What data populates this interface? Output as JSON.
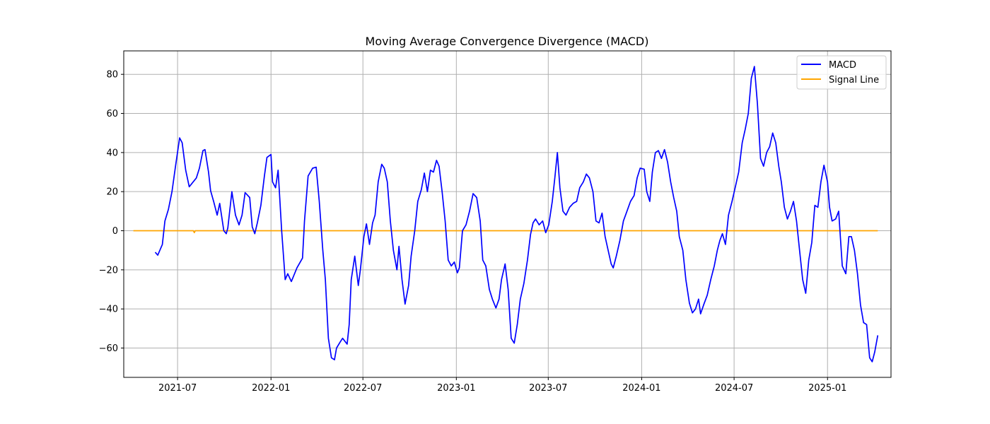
{
  "chart_data": {
    "type": "line",
    "title": "Moving Average Convergence Divergence (MACD)",
    "xlabel": "",
    "ylabel": "",
    "x_axis": "date",
    "xlim": [
      "2021-03-17",
      "2025-05-06"
    ],
    "ylim": [
      -75,
      92
    ],
    "x_ticks": [
      "2021-07",
      "2022-01",
      "2022-07",
      "2023-01",
      "2023-07",
      "2024-01",
      "2024-07",
      "2025-01"
    ],
    "y_ticks": [
      -60,
      -40,
      -20,
      0,
      20,
      40,
      60,
      80
    ],
    "grid": true,
    "legend": {
      "placement": "top-right"
    },
    "series": [
      {
        "name": "MACD",
        "color": "#0000ff",
        "points": [
          [
            "2021-05-18",
            -11
          ],
          [
            "2021-05-23",
            -12.5
          ],
          [
            "2021-06-01",
            -7
          ],
          [
            "2021-06-06",
            5
          ],
          [
            "2021-06-13",
            11
          ],
          [
            "2021-06-20",
            20
          ],
          [
            "2021-06-27",
            33
          ],
          [
            "2021-07-05",
            47.5
          ],
          [
            "2021-07-10",
            45
          ],
          [
            "2021-07-17",
            31
          ],
          [
            "2021-07-24",
            22.5
          ],
          [
            "2021-08-07",
            27
          ],
          [
            "2021-08-13",
            32
          ],
          [
            "2021-08-20",
            41
          ],
          [
            "2021-08-24",
            41.5
          ],
          [
            "2021-08-31",
            30
          ],
          [
            "2021-09-04",
            20.5
          ],
          [
            "2021-09-10",
            15
          ],
          [
            "2021-09-17",
            8
          ],
          [
            "2021-09-22",
            14
          ],
          [
            "2021-09-30",
            0
          ],
          [
            "2021-10-05",
            -1.5
          ],
          [
            "2021-10-08",
            1.5
          ],
          [
            "2021-10-16",
            20
          ],
          [
            "2021-10-23",
            8
          ],
          [
            "2021-10-30",
            3
          ],
          [
            "2021-11-05",
            8
          ],
          [
            "2021-11-11",
            19.5
          ],
          [
            "2021-11-20",
            17
          ],
          [
            "2021-11-25",
            2
          ],
          [
            "2021-11-30",
            -1.5
          ],
          [
            "2021-12-05",
            4
          ],
          [
            "2021-12-12",
            13
          ],
          [
            "2021-12-19",
            28
          ],
          [
            "2021-12-24",
            37.5
          ],
          [
            "2022-01-01",
            39
          ],
          [
            "2022-01-04",
            25
          ],
          [
            "2022-01-10",
            22
          ],
          [
            "2022-01-15",
            31
          ],
          [
            "2022-01-22",
            0
          ],
          [
            "2022-01-29",
            -25
          ],
          [
            "2022-02-03",
            -22
          ],
          [
            "2022-02-10",
            -26
          ],
          [
            "2022-02-21",
            -19
          ],
          [
            "2022-03-04",
            -14
          ],
          [
            "2022-03-08",
            5
          ],
          [
            "2022-03-15",
            28
          ],
          [
            "2022-03-24",
            32
          ],
          [
            "2022-03-31",
            32.5
          ],
          [
            "2022-04-06",
            15
          ],
          [
            "2022-04-13",
            -10
          ],
          [
            "2022-04-18",
            -25
          ],
          [
            "2022-04-24",
            -55
          ],
          [
            "2022-04-30",
            -65
          ],
          [
            "2022-05-06",
            -66
          ],
          [
            "2022-05-10",
            -60
          ],
          [
            "2022-05-17",
            -57
          ],
          [
            "2022-05-22",
            -55
          ],
          [
            "2022-05-31",
            -58
          ],
          [
            "2022-06-04",
            -48
          ],
          [
            "2022-06-08",
            -25
          ],
          [
            "2022-06-15",
            -13
          ],
          [
            "2022-06-22",
            -28
          ],
          [
            "2022-06-26",
            -20
          ],
          [
            "2022-07-03",
            -3
          ],
          [
            "2022-07-08",
            3.5
          ],
          [
            "2022-07-14",
            -7
          ],
          [
            "2022-07-20",
            4
          ],
          [
            "2022-07-25",
            8
          ],
          [
            "2022-07-31",
            25
          ],
          [
            "2022-08-07",
            34
          ],
          [
            "2022-08-12",
            32
          ],
          [
            "2022-08-18",
            25
          ],
          [
            "2022-08-24",
            5
          ],
          [
            "2022-08-30",
            -10
          ],
          [
            "2022-09-06",
            -20
          ],
          [
            "2022-09-10",
            -8
          ],
          [
            "2022-09-16",
            -25
          ],
          [
            "2022-09-22",
            -37.5
          ],
          [
            "2022-09-29",
            -28
          ],
          [
            "2022-10-04",
            -13
          ],
          [
            "2022-10-11",
            0
          ],
          [
            "2022-10-17",
            15
          ],
          [
            "2022-10-24",
            21
          ],
          [
            "2022-10-30",
            29.5
          ],
          [
            "2022-11-05",
            20
          ],
          [
            "2022-11-11",
            31
          ],
          [
            "2022-11-17",
            30
          ],
          [
            "2022-11-23",
            36
          ],
          [
            "2022-11-28",
            33
          ],
          [
            "2022-12-04",
            20
          ],
          [
            "2022-12-10",
            5
          ],
          [
            "2022-12-16",
            -15
          ],
          [
            "2022-12-22",
            -18
          ],
          [
            "2022-12-28",
            -16
          ],
          [
            "2023-01-03",
            -21.5
          ],
          [
            "2023-01-07",
            -19
          ],
          [
            "2023-01-13",
            0
          ],
          [
            "2023-01-20",
            3
          ],
          [
            "2023-01-27",
            10
          ],
          [
            "2023-02-03",
            19
          ],
          [
            "2023-02-10",
            17
          ],
          [
            "2023-02-17",
            5
          ],
          [
            "2023-02-22",
            -15
          ],
          [
            "2023-02-28",
            -18
          ],
          [
            "2023-03-07",
            -30
          ],
          [
            "2023-03-13",
            -35
          ],
          [
            "2023-03-20",
            -39.5
          ],
          [
            "2023-03-26",
            -35
          ],
          [
            "2023-03-31",
            -25
          ],
          [
            "2023-04-07",
            -17
          ],
          [
            "2023-04-13",
            -30
          ],
          [
            "2023-04-19",
            -55
          ],
          [
            "2023-04-25",
            -57.5
          ],
          [
            "2023-05-01",
            -48
          ],
          [
            "2023-05-07",
            -35
          ],
          [
            "2023-05-14",
            -27
          ],
          [
            "2023-05-21",
            -15
          ],
          [
            "2023-05-27",
            -2
          ],
          [
            "2023-06-01",
            4
          ],
          [
            "2023-06-06",
            6
          ],
          [
            "2023-06-13",
            3
          ],
          [
            "2023-06-20",
            5
          ],
          [
            "2023-06-26",
            -1
          ],
          [
            "2023-07-02",
            3
          ],
          [
            "2023-07-09",
            15
          ],
          [
            "2023-07-14",
            27
          ],
          [
            "2023-07-19",
            40
          ],
          [
            "2023-07-24",
            22
          ],
          [
            "2023-07-30",
            10
          ],
          [
            "2023-08-05",
            8
          ],
          [
            "2023-08-12",
            12
          ],
          [
            "2023-08-19",
            14
          ],
          [
            "2023-08-26",
            15
          ],
          [
            "2023-09-01",
            22
          ],
          [
            "2023-09-08",
            25
          ],
          [
            "2023-09-14",
            29
          ],
          [
            "2023-09-20",
            27
          ],
          [
            "2023-09-27",
            20
          ],
          [
            "2023-10-03",
            5
          ],
          [
            "2023-10-09",
            4
          ],
          [
            "2023-10-15",
            9
          ],
          [
            "2023-10-21",
            -3
          ],
          [
            "2023-10-27",
            -10
          ],
          [
            "2023-11-02",
            -17
          ],
          [
            "2023-11-06",
            -19
          ],
          [
            "2023-11-12",
            -13
          ],
          [
            "2023-11-19",
            -5
          ],
          [
            "2023-11-26",
            5
          ],
          [
            "2023-12-03",
            10
          ],
          [
            "2023-12-10",
            15
          ],
          [
            "2023-12-17",
            18
          ],
          [
            "2023-12-23",
            27
          ],
          [
            "2023-12-29",
            32
          ],
          [
            "2024-01-06",
            31.5
          ],
          [
            "2024-01-11",
            20
          ],
          [
            "2024-01-17",
            15
          ],
          [
            "2024-01-22",
            30
          ],
          [
            "2024-01-28",
            40
          ],
          [
            "2024-02-03",
            41
          ],
          [
            "2024-02-09",
            37
          ],
          [
            "2024-02-15",
            41.5
          ],
          [
            "2024-02-21",
            35
          ],
          [
            "2024-02-27",
            25
          ],
          [
            "2024-03-04",
            17
          ],
          [
            "2024-03-10",
            10
          ],
          [
            "2024-03-15",
            -3
          ],
          [
            "2024-03-22",
            -10
          ],
          [
            "2024-03-28",
            -25
          ],
          [
            "2024-04-04",
            -37
          ],
          [
            "2024-04-10",
            -42
          ],
          [
            "2024-04-16",
            -40
          ],
          [
            "2024-04-22",
            -35
          ],
          [
            "2024-04-26",
            -42.5
          ],
          [
            "2024-05-02",
            -38
          ],
          [
            "2024-05-09",
            -33
          ],
          [
            "2024-05-16",
            -25
          ],
          [
            "2024-05-23",
            -18
          ],
          [
            "2024-05-29",
            -10
          ],
          [
            "2024-06-03",
            -5
          ],
          [
            "2024-06-08",
            -1.5
          ],
          [
            "2024-06-14",
            -7
          ],
          [
            "2024-06-20",
            8
          ],
          [
            "2024-06-27",
            15
          ],
          [
            "2024-07-03",
            22
          ],
          [
            "2024-07-10",
            30
          ],
          [
            "2024-07-17",
            45
          ],
          [
            "2024-07-23",
            52
          ],
          [
            "2024-07-29",
            60
          ],
          [
            "2024-08-04",
            78
          ],
          [
            "2024-08-10",
            84
          ],
          [
            "2024-08-16",
            65
          ],
          [
            "2024-08-22",
            37
          ],
          [
            "2024-08-28",
            33
          ],
          [
            "2024-09-03",
            40
          ],
          [
            "2024-09-09",
            43
          ],
          [
            "2024-09-15",
            50
          ],
          [
            "2024-09-21",
            45
          ],
          [
            "2024-09-27",
            33
          ],
          [
            "2024-10-02",
            25
          ],
          [
            "2024-10-08",
            12
          ],
          [
            "2024-10-14",
            6
          ],
          [
            "2024-10-20",
            10
          ],
          [
            "2024-10-26",
            15
          ],
          [
            "2024-11-01",
            5
          ],
          [
            "2024-11-07",
            -10
          ],
          [
            "2024-11-13",
            -25
          ],
          [
            "2024-11-19",
            -32
          ],
          [
            "2024-11-25",
            -15
          ],
          [
            "2024-12-01",
            -6
          ],
          [
            "2024-12-07",
            13
          ],
          [
            "2024-12-13",
            12
          ],
          [
            "2024-12-19",
            25
          ],
          [
            "2024-12-25",
            33.5
          ],
          [
            "2025-01-01",
            25
          ],
          [
            "2025-01-05",
            12
          ],
          [
            "2025-01-10",
            5
          ],
          [
            "2025-01-17",
            6
          ],
          [
            "2025-01-23",
            10
          ],
          [
            "2025-01-30",
            -18
          ],
          [
            "2025-02-06",
            -22
          ],
          [
            "2025-02-12",
            -3
          ],
          [
            "2025-02-17",
            -3
          ],
          [
            "2025-02-23",
            -10
          ],
          [
            "2025-03-01",
            -22
          ],
          [
            "2025-03-07",
            -38
          ],
          [
            "2025-03-13",
            -47
          ],
          [
            "2025-03-19",
            -48
          ],
          [
            "2025-03-25",
            -65
          ],
          [
            "2025-03-30",
            -67
          ],
          [
            "2025-04-04",
            -62
          ],
          [
            "2025-04-10",
            -53.5
          ]
        ]
      },
      {
        "name": "Signal Line",
        "color": "#ffa500",
        "points": [
          [
            "2021-04-05",
            0
          ],
          [
            "2021-08-01",
            0
          ],
          [
            "2021-08-03",
            -1
          ],
          [
            "2021-08-05",
            0
          ],
          [
            "2025-04-10",
            0
          ]
        ]
      }
    ]
  }
}
